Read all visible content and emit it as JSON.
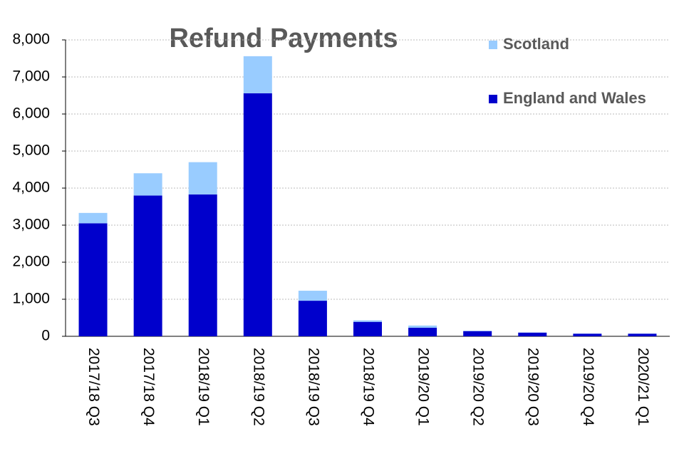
{
  "chart_data": {
    "type": "stacked-bar",
    "title": "Refund Payments",
    "categories": [
      "2017/18 Q3",
      "2017/18 Q4",
      "2018/19 Q1",
      "2018/19 Q2",
      "2018/19 Q3",
      "2018/19 Q4",
      "2019/20 Q1",
      "2019/20 Q2",
      "2019/20 Q3",
      "2019/20 Q4",
      "2020/21 Q1"
    ],
    "series": [
      {
        "name": "England and Wales",
        "color": "#0000cc",
        "values": [
          3050,
          3800,
          3830,
          6560,
          960,
          390,
          230,
          140,
          100,
          70,
          70
        ]
      },
      {
        "name": "Scotland",
        "color": "#99ccff",
        "values": [
          280,
          600,
          870,
          1000,
          270,
          40,
          60,
          10,
          5,
          5,
          5
        ]
      }
    ],
    "ylim": [
      0,
      8000
    ],
    "yticks": [
      0,
      {
        "value": 1000,
        "label": "1,000"
      },
      {
        "value": 2000,
        "label": "2,000"
      },
      {
        "value": 3000,
        "label": "3,000"
      },
      {
        "value": 4000,
        "label": "4,000"
      },
      {
        "value": 5000,
        "label": "5,000"
      },
      {
        "value": 6000,
        "label": "6,000"
      },
      {
        "value": 7000,
        "label": "7,000"
      },
      {
        "value": 8000,
        "label": "8,000"
      }
    ],
    "grid": true,
    "legend": "top-right"
  }
}
